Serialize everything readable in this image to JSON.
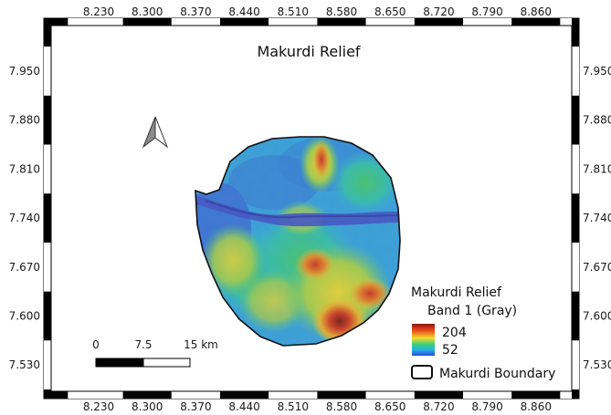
{
  "map": {
    "title": "Makurdi Relief",
    "x_ticks": [
      "8.230",
      "8.300",
      "8.370",
      "8.440",
      "8.510",
      "8.580",
      "8.650",
      "8.720",
      "8.790",
      "8.860"
    ],
    "y_ticks": [
      "7.950",
      "7.880",
      "7.810",
      "7.740",
      "7.670",
      "7.600",
      "7.530"
    ]
  },
  "legend": {
    "layer_title": "Makurdi Relief",
    "band_label": "Band 1 (Gray)",
    "max_value": "204",
    "min_value": "52",
    "boundary_label": "Makurdi Boundary"
  },
  "scalebar": {
    "labels": [
      "0",
      "7.5",
      "15 km"
    ]
  },
  "colors": {
    "low": "#2b49d6",
    "mid_low": "#26b0e8",
    "mid": "#35d07a",
    "mid_high": "#f1dc2c",
    "high": "#e8441a",
    "peak": "#8b1a10"
  }
}
